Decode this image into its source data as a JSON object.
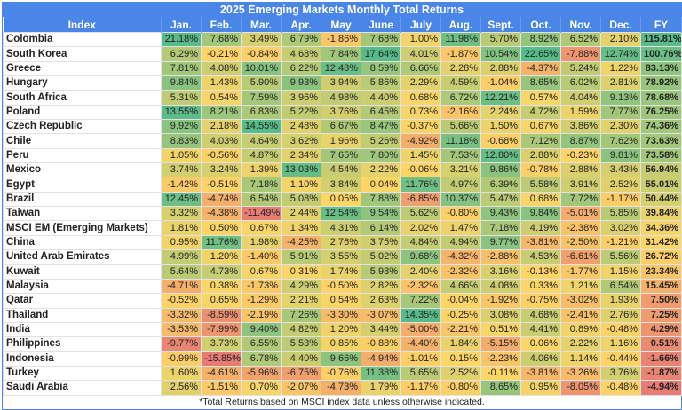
{
  "chart_data": {
    "type": "table",
    "title": "2025 Emerging Markets Monthly Total Returns",
    "columns": [
      "Index",
      "Jan.",
      "Feb.",
      "Mar.",
      "Apr.",
      "May",
      "June",
      "July",
      "Aug.",
      "Sept.",
      "Oct.",
      "Nov.",
      "Dec.",
      "FY"
    ],
    "rows": [
      {
        "name": "Colombia",
        "values": [
          "21.18%",
          "7.68%",
          "3.49%",
          "6.79%",
          "-1.86%",
          "7.68%",
          "1.00%",
          "11.98%",
          "5.70%",
          "8.92%",
          "6.52%",
          "2.10%",
          "115.81%"
        ]
      },
      {
        "name": "South Korea",
        "values": [
          "6.29%",
          "-0.21%",
          "-0.84%",
          "4.68%",
          "7.84%",
          "17.64%",
          "4.01%",
          "-1.87%",
          "10.54%",
          "22.65%",
          "-7.88%",
          "12.74%",
          "100.76%"
        ]
      },
      {
        "name": "Greece",
        "values": [
          "7.81%",
          "4.08%",
          "10.01%",
          "6.22%",
          "12.48%",
          "8.59%",
          "6.66%",
          "2.28%",
          "2.88%",
          "-4.37%",
          "5.24%",
          "1.22%",
          "83.13%"
        ]
      },
      {
        "name": "Hungary",
        "values": [
          "9.84%",
          "1.43%",
          "5.90%",
          "9.93%",
          "3.94%",
          "5.86%",
          "2.29%",
          "4.59%",
          "-1.04%",
          "8.65%",
          "6.02%",
          "2.81%",
          "78.92%"
        ]
      },
      {
        "name": "South Africa",
        "values": [
          "5.31%",
          "0.54%",
          "7.59%",
          "3.96%",
          "4.98%",
          "4.40%",
          "0.68%",
          "6.72%",
          "12.21%",
          "0.57%",
          "4.04%",
          "9.13%",
          "78.68%"
        ]
      },
      {
        "name": "Poland",
        "values": [
          "13.55%",
          "8.21%",
          "6.83%",
          "5.22%",
          "3.76%",
          "6.45%",
          "0.73%",
          "-2.16%",
          "2.24%",
          "4.72%",
          "1.59%",
          "7.77%",
          "76.25%"
        ]
      },
      {
        "name": "Czech Republic",
        "values": [
          "9.92%",
          "2.18%",
          "14.55%",
          "2.48%",
          "6.67%",
          "8.47%",
          "-0.37%",
          "5.66%",
          "1.50%",
          "0.67%",
          "3.86%",
          "2.30%",
          "74.36%"
        ]
      },
      {
        "name": "Chile",
        "values": [
          "8.83%",
          "4.03%",
          "4.64%",
          "3.62%",
          "1.96%",
          "5.26%",
          "-4.92%",
          "11.18%",
          "-0.68%",
          "7.12%",
          "8.87%",
          "7.62%",
          "73.63%"
        ]
      },
      {
        "name": "Peru",
        "values": [
          "1.05%",
          "-0.56%",
          "4.87%",
          "2.34%",
          "7.65%",
          "7.80%",
          "1.45%",
          "7.53%",
          "12.80%",
          "2.88%",
          "-0.23%",
          "9.81%",
          "73.58%"
        ]
      },
      {
        "name": "Mexico",
        "values": [
          "3.74%",
          "3.24%",
          "1.39%",
          "13.03%",
          "4.54%",
          "2.22%",
          "-0.06%",
          "3.21%",
          "9.86%",
          "-0.78%",
          "2.88%",
          "3.43%",
          "56.94%"
        ]
      },
      {
        "name": "Egypt",
        "values": [
          "-1.42%",
          "-0.51%",
          "7.18%",
          "1.10%",
          "3.84%",
          "0.04%",
          "11.76%",
          "4.97%",
          "6.39%",
          "5.58%",
          "3.91%",
          "2.52%",
          "55.01%"
        ]
      },
      {
        "name": "Brazil",
        "values": [
          "12.45%",
          "-4.74%",
          "6.54%",
          "5.08%",
          "0.05%",
          "7.88%",
          "-6.85%",
          "10.37%",
          "5.47%",
          "0.68%",
          "7.72%",
          "-1.17%",
          "50.44%"
        ]
      },
      {
        "name": "Taiwan",
        "values": [
          "3.32%",
          "-4.38%",
          "-11.49%",
          "2.44%",
          "12.54%",
          "9.54%",
          "5.62%",
          "-0.80%",
          "9.43%",
          "9.84%",
          "-5.01%",
          "5.85%",
          "39.84%"
        ]
      },
      {
        "name": "MSCI EM (Emerging Markets)",
        "values": [
          "1.81%",
          "0.50%",
          "0.67%",
          "1.34%",
          "4.31%",
          "6.14%",
          "2.02%",
          "1.47%",
          "7.18%",
          "4.19%",
          "-2.38%",
          "3.02%",
          "34.36%"
        ]
      },
      {
        "name": "China",
        "values": [
          "0.95%",
          "11.76%",
          "1.98%",
          "-4.25%",
          "2.76%",
          "3.75%",
          "4.84%",
          "4.94%",
          "9.77%",
          "-3.81%",
          "-2.50%",
          "-1.21%",
          "31.42%"
        ]
      },
      {
        "name": "United Arab Emirates",
        "values": [
          "4.99%",
          "1.20%",
          "-1.40%",
          "5.91%",
          "3.55%",
          "5.02%",
          "9.68%",
          "-4.32%",
          "-2.88%",
          "4.53%",
          "-6.61%",
          "5.56%",
          "26.72%"
        ]
      },
      {
        "name": "Kuwait",
        "values": [
          "5.64%",
          "4.73%",
          "0.67%",
          "0.31%",
          "1.74%",
          "5.98%",
          "2.40%",
          "-2.32%",
          "3.16%",
          "-0.13%",
          "-1.77%",
          "1.15%",
          "23.34%"
        ]
      },
      {
        "name": "Malaysia",
        "values": [
          "-4.71%",
          "0.38%",
          "-1.73%",
          "4.29%",
          "-0.50%",
          "2.82%",
          "-2.32%",
          "4.66%",
          "4.08%",
          "0.33%",
          "1.21%",
          "6.54%",
          "15.45%"
        ]
      },
      {
        "name": "Qatar",
        "values": [
          "-0.52%",
          "0.65%",
          "-1.29%",
          "2.21%",
          "0.54%",
          "2.63%",
          "7.22%",
          "-0.04%",
          "-1.92%",
          "-0.75%",
          "-3.02%",
          "1.93%",
          "7.50%"
        ]
      },
      {
        "name": "Thailand",
        "values": [
          "-3.32%",
          "-8.59%",
          "-2.19%",
          "7.26%",
          "-3.30%",
          "-3.07%",
          "14.35%",
          "-0.25%",
          "3.08%",
          "4.68%",
          "-2.41%",
          "2.76%",
          "7.25%"
        ]
      },
      {
        "name": "India",
        "values": [
          "-3.53%",
          "-7.99%",
          "9.40%",
          "4.82%",
          "1.20%",
          "3.44%",
          "-5.00%",
          "-2.21%",
          "0.51%",
          "4.41%",
          "0.89%",
          "-0.48%",
          "4.29%"
        ]
      },
      {
        "name": "Philippines",
        "values": [
          "-9.77%",
          "3.73%",
          "6.55%",
          "5.53%",
          "0.85%",
          "-0.88%",
          "-4.40%",
          "1.84%",
          "-5.15%",
          "0.06%",
          "2.22%",
          "1.16%",
          "0.51%"
        ]
      },
      {
        "name": "Indonesia",
        "values": [
          "-0.99%",
          "-15.85%",
          "6.78%",
          "4.40%",
          "9.66%",
          "-4.94%",
          "-1.01%",
          "0.15%",
          "-2.23%",
          "4.06%",
          "1.14%",
          "-0.44%",
          "-1.66%"
        ]
      },
      {
        "name": "Turkey",
        "values": [
          "1.60%",
          "-4.61%",
          "-5.96%",
          "-6.75%",
          "-0.76%",
          "11.38%",
          "5.65%",
          "2.52%",
          "-0.11%",
          "-3.81%",
          "-3.26%",
          "3.76%",
          "-1.87%"
        ]
      },
      {
        "name": "Saudi Arabia",
        "values": [
          "2.56%",
          "-1.51%",
          "0.70%",
          "-2.07%",
          "-4.73%",
          "1.79%",
          "-1.17%",
          "-0.80%",
          "8.65%",
          "0.95%",
          "-8.05%",
          "-0.48%",
          "-4.94%"
        ]
      }
    ],
    "footnote": "*Total Returns based on MSCI index data unless otherwise indicated.",
    "colors": {
      "header": "#4a86e8",
      "low": "#e67c73",
      "mid": "#ffd666",
      "high": "#57bb8a"
    }
  }
}
